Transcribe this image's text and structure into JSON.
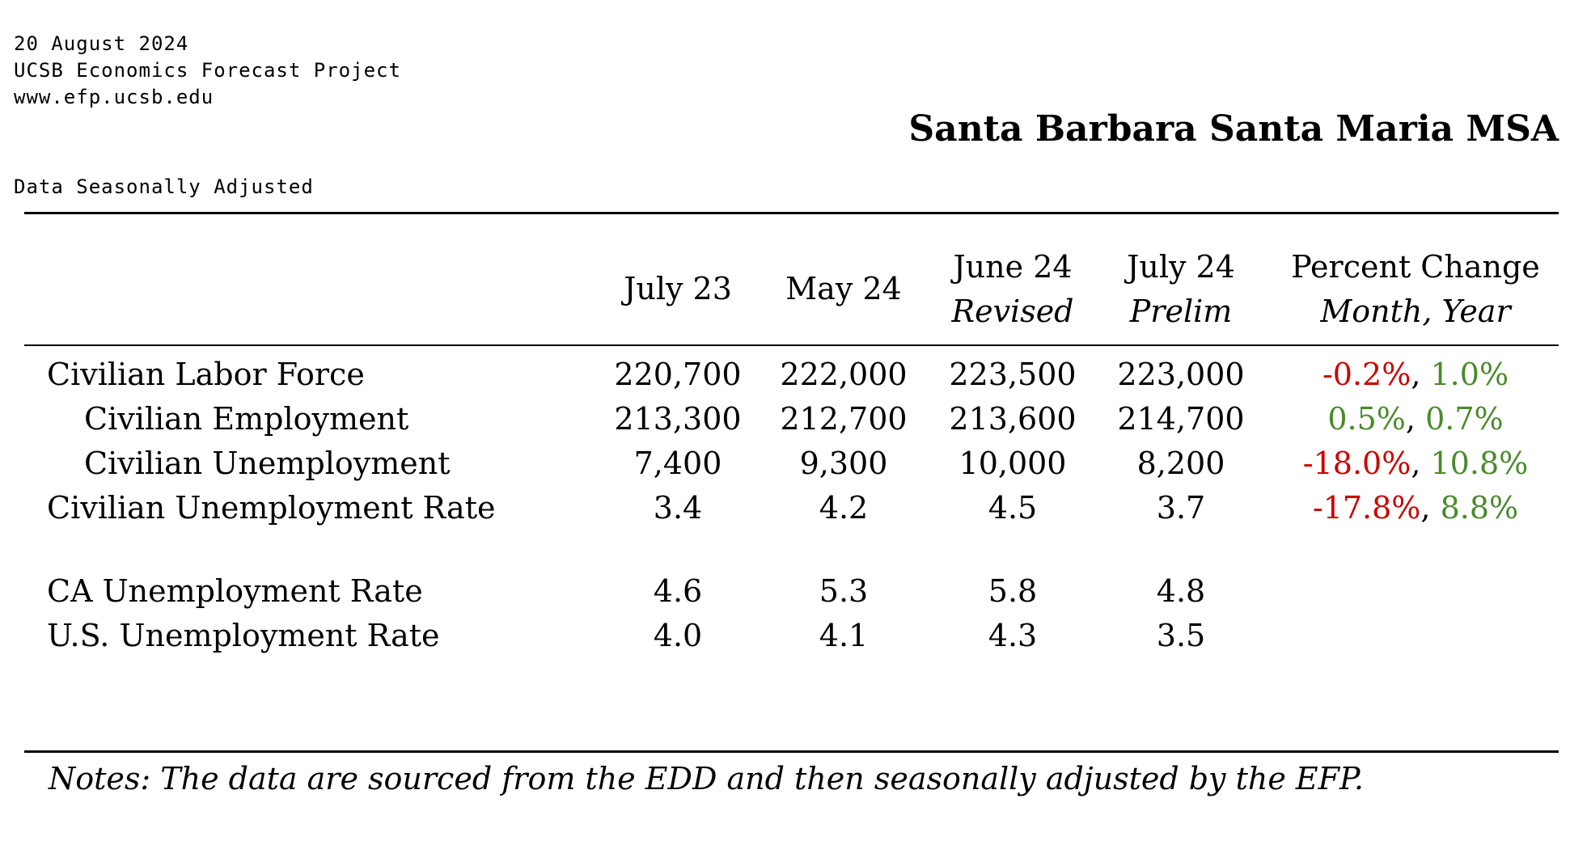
{
  "header": {
    "date": "20 August 2024",
    "organization": "UCSB Economics Forecast Project",
    "website": "www.efp.ucsb.edu",
    "adjustment_note": "Data Seasonally Adjusted",
    "region_title": "Santa Barbara Santa Maria MSA"
  },
  "columns": {
    "c1": {
      "line1": "July 23",
      "line2": ""
    },
    "c2": {
      "line1": "May 24",
      "line2": ""
    },
    "c3": {
      "line1": "June 24",
      "line2": "Revised"
    },
    "c4": {
      "line1": "July 24",
      "line2": "Prelim"
    },
    "c5": {
      "line1": "Percent Change",
      "line2": "Month, Year"
    }
  },
  "rows": [
    {
      "label": "Civilian Labor Force",
      "values": [
        "220,700",
        "222,000",
        "223,500",
        "223,000"
      ],
      "month_change": "-0.2%",
      "year_change": "1.0%"
    },
    {
      "label": "Civilian Employment",
      "values": [
        "213,300",
        "212,700",
        "213,600",
        "214,700"
      ],
      "month_change": "0.5%",
      "year_change": "0.7%"
    },
    {
      "label": "Civilian Unemployment",
      "values": [
        "7,400",
        "9,300",
        "10,000",
        "8,200"
      ],
      "month_change": "-18.0%",
      "year_change": "10.8%"
    },
    {
      "label": "Civilian Unemployment Rate",
      "values": [
        "3.4",
        "4.2",
        "4.5",
        "3.7"
      ],
      "month_change": "-17.8%",
      "year_change": "8.8%"
    },
    {
      "label": "CA Unemployment Rate",
      "values": [
        "4.6",
        "5.3",
        "5.8",
        "4.8"
      ]
    },
    {
      "label": "U.S. Unemployment Rate",
      "values": [
        "4.0",
        "4.1",
        "4.3",
        "3.5"
      ]
    }
  ],
  "separator": ", ",
  "notes": "Notes: The data are sourced from the EDD and then seasonally adjusted by the EFP.",
  "colors": {
    "negative": "#cc0000",
    "positive": "#4a8a2a"
  }
}
